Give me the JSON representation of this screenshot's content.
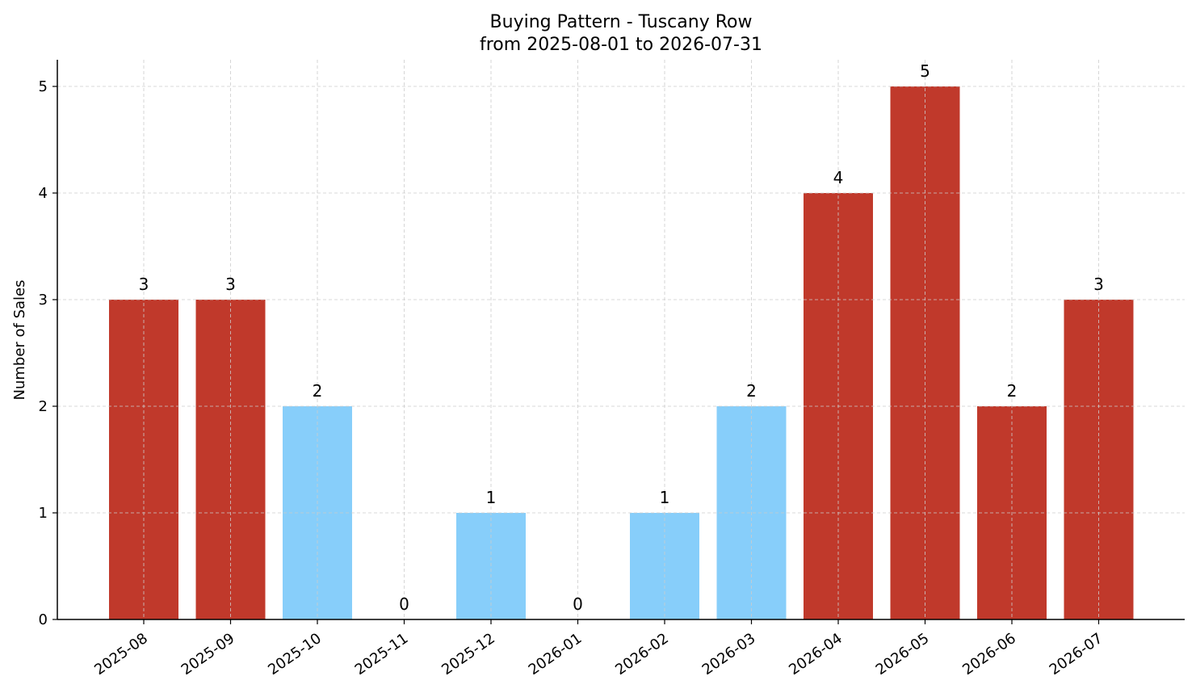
{
  "chart_data": {
    "type": "bar",
    "title": "Buying Pattern - Tuscany Row",
    "subtitle": "from 2025-08-01 to 2026-07-31",
    "xlabel": "",
    "ylabel": "Number of Sales",
    "categories": [
      "2025-08",
      "2025-09",
      "2025-10",
      "2025-11",
      "2025-12",
      "2026-01",
      "2026-02",
      "2026-03",
      "2026-04",
      "2026-05",
      "2026-06",
      "2026-07"
    ],
    "values": [
      3,
      3,
      2,
      0,
      1,
      0,
      1,
      2,
      4,
      5,
      2,
      3
    ],
    "bar_colors": [
      "#c0392b",
      "#c0392b",
      "#87cefa",
      "#87cefa",
      "#87cefa",
      "#87cefa",
      "#87cefa",
      "#87cefa",
      "#c0392b",
      "#c0392b",
      "#c0392b",
      "#c0392b"
    ],
    "ylim": [
      0,
      5.25
    ],
    "yticks": [
      0,
      1,
      2,
      3,
      4,
      5
    ],
    "grid": true,
    "x_tick_rotation": 35
  }
}
